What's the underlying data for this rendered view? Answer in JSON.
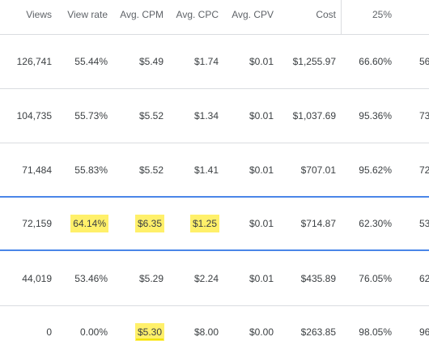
{
  "columns": [
    {
      "key": "views",
      "label": "Views"
    },
    {
      "key": "view_rate",
      "label": "View rate"
    },
    {
      "key": "avg_cpm",
      "label": "Avg. CPM"
    },
    {
      "key": "avg_cpc",
      "label": "Avg. CPC"
    },
    {
      "key": "avg_cpv",
      "label": "Avg. CPV"
    },
    {
      "key": "cost",
      "label": "Cost"
    },
    {
      "key": "p25",
      "label": "25%"
    }
  ],
  "rows": [
    {
      "views": "126,741",
      "view_rate": "55.44%",
      "avg_cpm": "$5.49",
      "avg_cpc": "$1.74",
      "avg_cpv": "$0.01",
      "cost": "$1,255.97",
      "p25": "66.60%",
      "next": "56"
    },
    {
      "views": "104,735",
      "view_rate": "55.73%",
      "avg_cpm": "$5.52",
      "avg_cpc": "$1.34",
      "avg_cpv": "$0.01",
      "cost": "$1,037.69",
      "p25": "95.36%",
      "next": "73"
    },
    {
      "views": "71,484",
      "view_rate": "55.83%",
      "avg_cpm": "$5.52",
      "avg_cpc": "$1.41",
      "avg_cpv": "$0.01",
      "cost": "$707.01",
      "p25": "95.62%",
      "next": "72"
    },
    {
      "views": "72,159",
      "view_rate": "64.14%",
      "avg_cpm": "$6.35",
      "avg_cpc": "$1.25",
      "avg_cpv": "$0.01",
      "cost": "$714.87",
      "p25": "62.30%",
      "next": "53"
    },
    {
      "views": "44,019",
      "view_rate": "53.46%",
      "avg_cpm": "$5.29",
      "avg_cpc": "$2.24",
      "avg_cpv": "$0.01",
      "cost": "$435.89",
      "p25": "76.05%",
      "next": "62"
    },
    {
      "views": "0",
      "view_rate": "0.00%",
      "avg_cpm": "$5.30",
      "avg_cpc": "$8.00",
      "avg_cpv": "$0.00",
      "cost": "$263.85",
      "p25": "98.05%",
      "next": "96"
    }
  ],
  "highlight_color": "#fff06a",
  "selected_row_border_color": "#4a86e8"
}
